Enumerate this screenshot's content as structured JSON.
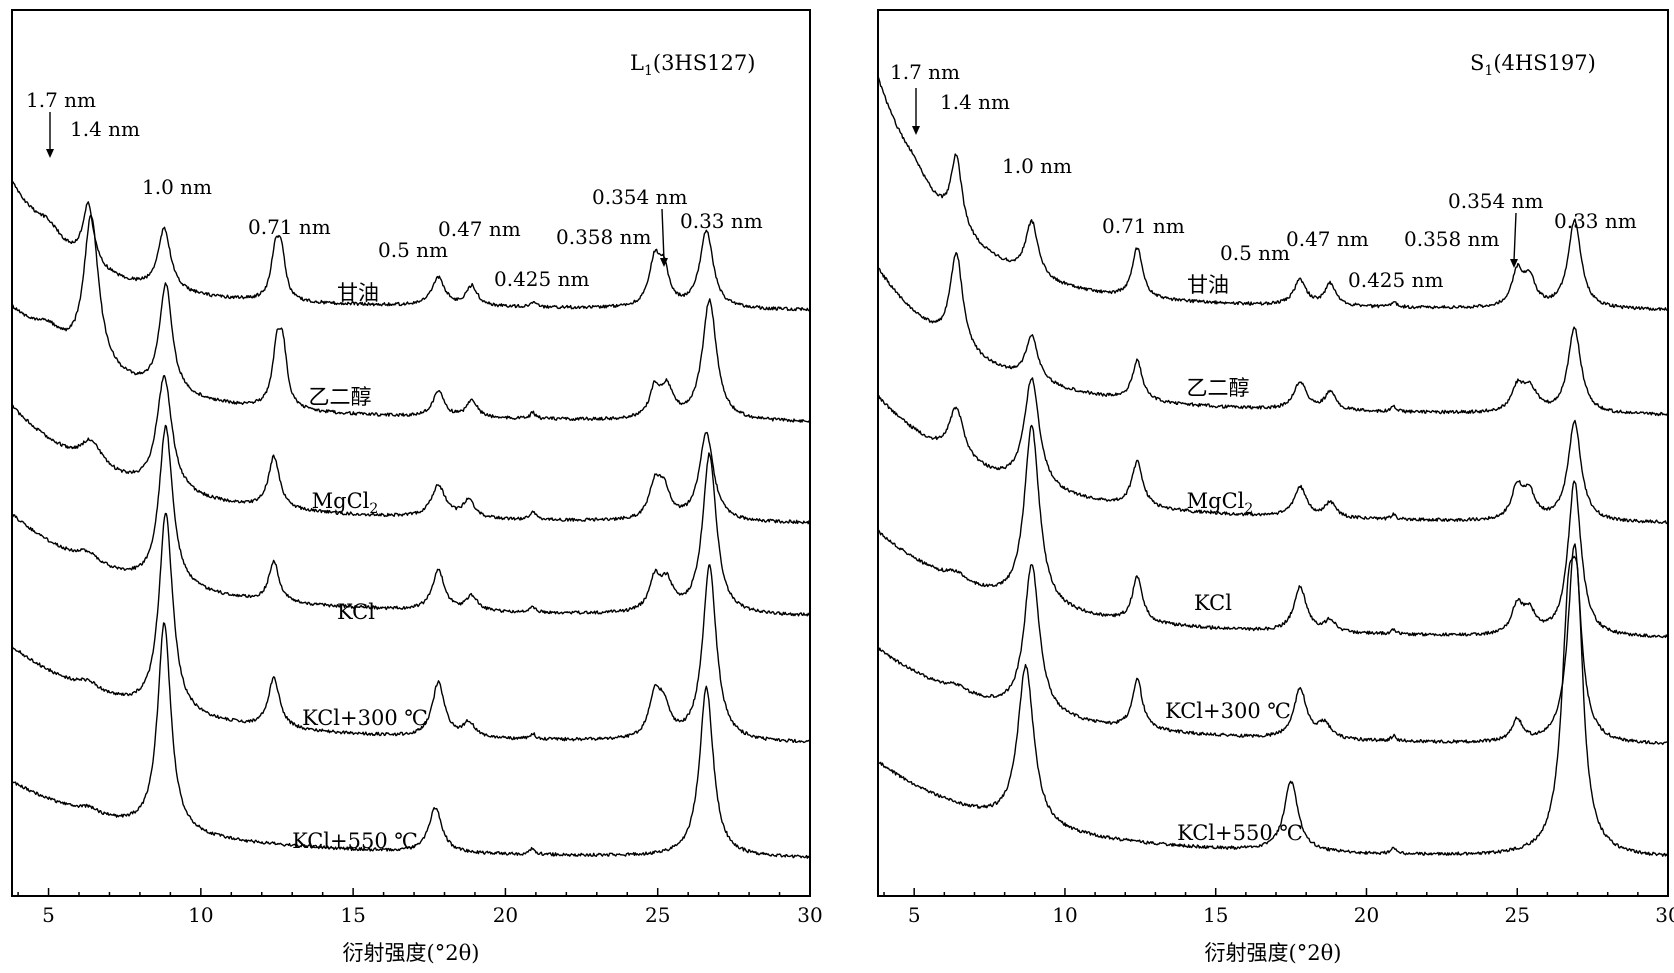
{
  "chart_data": [
    {
      "type": "line",
      "sample_label": "L",
      "sample_label_sub": "1",
      "sample_label_rest": "(3HS127)",
      "xlabel": "衍射强度(°2θ)",
      "xlim": [
        3.8,
        30
      ],
      "xticks": [
        5,
        10,
        15,
        20,
        25,
        30
      ],
      "peak_labels": [
        {
          "text": "1.7 nm",
          "x": 5.0,
          "arrow": true
        },
        {
          "text": "1.4 nm",
          "x": 6.3
        },
        {
          "text": "1.0 nm",
          "x": 8.8
        },
        {
          "text": "0.71 nm",
          "x": 12.5
        },
        {
          "text": "0.5 nm",
          "x": 17.8
        },
        {
          "text": "0.47 nm",
          "x": 18.9
        },
        {
          "text": "0.425 nm",
          "x": 20.9
        },
        {
          "text": "0.358 nm",
          "x": 24.9
        },
        {
          "text": "0.354 nm",
          "x": 25.2,
          "arrow": true
        },
        {
          "text": "0.33 nm",
          "x": 26.6
        }
      ],
      "series": [
        {
          "name": "甘油",
          "offset": 0
        },
        {
          "name": "乙二醇",
          "offset": 1
        },
        {
          "name": "MgCl",
          "name_sub": "2",
          "offset": 2
        },
        {
          "name": "KCl",
          "offset": 3
        },
        {
          "name": "KCl+300 ℃",
          "offset": 4
        },
        {
          "name": "KCl+550 ℃",
          "offset": 5
        }
      ]
    },
    {
      "type": "line",
      "sample_label": "S",
      "sample_label_sub": "1",
      "sample_label_rest": "(4HS197)",
      "xlabel": "衍射强度(°2θ)",
      "xlim": [
        3.8,
        30
      ],
      "xticks": [
        5,
        10,
        15,
        20,
        25,
        30
      ],
      "peak_labels": [
        {
          "text": "1.7 nm",
          "x": 5.0,
          "arrow": true
        },
        {
          "text": "1.4 nm",
          "x": 6.4
        },
        {
          "text": "1.0 nm",
          "x": 8.9
        },
        {
          "text": "0.71 nm",
          "x": 12.4
        },
        {
          "text": "0.5 nm",
          "x": 17.8
        },
        {
          "text": "0.47 nm",
          "x": 18.8
        },
        {
          "text": "0.425 nm",
          "x": 20.9
        },
        {
          "text": "0.358 nm",
          "x": 25.0
        },
        {
          "text": "0.354 nm",
          "x": 25.4,
          "arrow": true
        },
        {
          "text": "0.33 nm",
          "x": 26.9
        }
      ],
      "series": [
        {
          "name": "甘油",
          "offset": 0
        },
        {
          "name": "乙二醇",
          "offset": 1
        },
        {
          "name": "MgCl",
          "name_sub": "2",
          "offset": 2
        },
        {
          "name": "KCl",
          "offset": 3
        },
        {
          "name": "KCl+300 ℃",
          "offset": 4
        },
        {
          "name": "KCl+550 ℃",
          "offset": 5
        }
      ]
    }
  ]
}
